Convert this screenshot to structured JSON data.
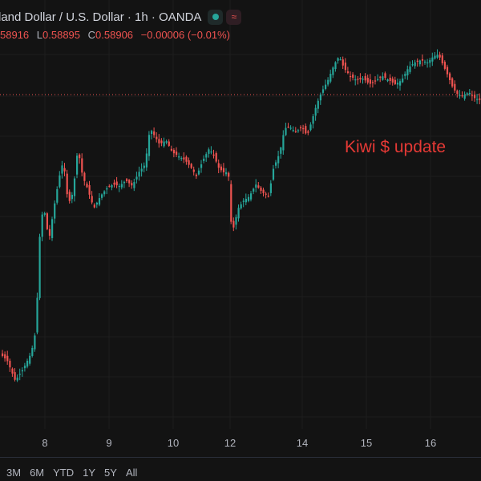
{
  "header": {
    "symbol_title": "land Dollar / U.S. Dollar · 1h · OANDA",
    "status_icon": "market-open-dot",
    "wave_icon": "≈"
  },
  "ohlc": {
    "open_value": "58916",
    "low_key": "L",
    "low_value": "0.58895",
    "close_key": "C",
    "close_value": "0.58906",
    "change": "−0.00006 (−0.01%)"
  },
  "annotation": "Kiwi $ update",
  "x_axis": [
    "8",
    "9",
    "10",
    "12",
    "14",
    "15",
    "16"
  ],
  "time_ranges": [
    "3M",
    "6M",
    "YTD",
    "1Y",
    "5Y",
    "All"
  ],
  "colors": {
    "up": "#26a69a",
    "down": "#ef5350",
    "background": "#131313",
    "grid": "#1e1e1e",
    "annotation": "#e53935"
  }
}
